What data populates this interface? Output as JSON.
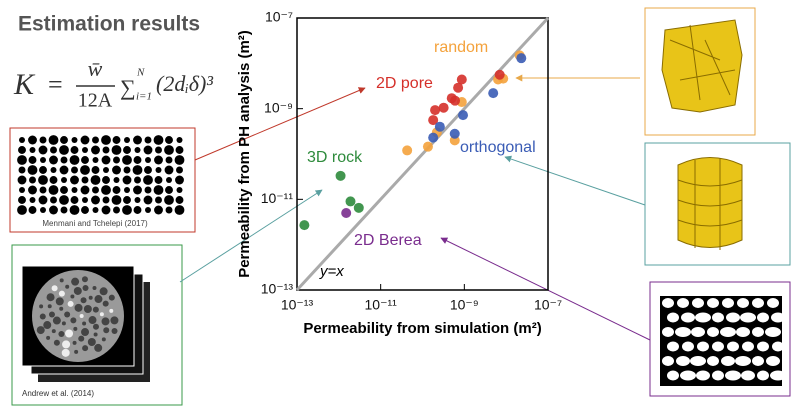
{
  "slide": {
    "title": "Estimation results",
    "formula": {
      "lhs": "K",
      "equals": "=",
      "numerator": "w̄",
      "denominator": "12A",
      "sum": "∑",
      "lower": "i=1",
      "upper": "N",
      "term": "(2dᵢδ)³"
    },
    "captions": [
      "Menmani and Tchelepi (2017)",
      "Andrew et al. (2014)"
    ]
  },
  "chart_data": {
    "type": "scatter",
    "xlabel": "Permeability from simulation (m²)",
    "ylabel": "Permeability from PH analysis (m²)",
    "log_scale": true,
    "xlim": [
      1e-13,
      1e-07
    ],
    "ylim": [
      1e-13,
      1e-07
    ],
    "xticks": [
      {
        "value": 1e-13,
        "label": "10⁻¹³"
      },
      {
        "value": 1e-11,
        "label": "10⁻¹¹"
      },
      {
        "value": 1e-09,
        "label": "10⁻⁹"
      },
      {
        "value": 1e-07,
        "label": "10⁻⁷"
      }
    ],
    "yticks": [
      {
        "value": 1e-13,
        "label": "10⁻¹³"
      },
      {
        "value": 1e-11,
        "label": "10⁻¹¹"
      },
      {
        "value": 1e-09,
        "label": "10⁻⁹"
      },
      {
        "value": 1e-07,
        "label": "10⁻⁷"
      }
    ],
    "reference_line": "y=x",
    "series": [
      {
        "name": "random",
        "color": "#f4a23c",
        "x": [
          2.1e-08,
          6.4e-09,
          8.5e-09,
          4.3e-11,
          1.35e-10,
          2.2e-10,
          5.9e-10,
          8.7e-10
        ],
        "y": [
          1.5e-08,
          4.4e-09,
          4.6e-09,
          1.2e-10,
          1.45e-10,
          3e-10,
          2e-10,
          1.4e-09
        ]
      },
      {
        "name": "2D pore",
        "color": "#d5302a",
        "x": [
          8.7e-10,
          7.1e-10,
          3.2e-10,
          2e-10,
          1.8e-10,
          5e-10,
          7e-09,
          6e-10
        ],
        "y": [
          4.4e-09,
          2.9e-09,
          1.05e-09,
          9.3e-10,
          5.6e-10,
          1.7e-09,
          5.6e-09,
          1.5e-09
        ]
      },
      {
        "name": "orthogonal",
        "color": "#3a5cb5",
        "x": [
          1.8e-10,
          5.9e-10,
          9.3e-10,
          4.9e-09,
          2.3e-08,
          2.6e-10
        ],
        "y": [
          2.3e-10,
          2.8e-10,
          7.2e-10,
          2.2e-09,
          1.3e-08,
          4e-10
        ]
      },
      {
        "name": "3D rock",
        "color": "#2e8b3c",
        "x": [
          1.5e-13,
          1.1e-12,
          1.9e-12,
          3e-12
        ],
        "y": [
          2.7e-12,
          3.3e-11,
          9e-12,
          6.5e-12
        ]
      },
      {
        "name": "2D Berea",
        "color": "#7a2d8e",
        "x": [
          1.5e-12
        ],
        "y": [
          5e-12
        ]
      }
    ]
  }
}
